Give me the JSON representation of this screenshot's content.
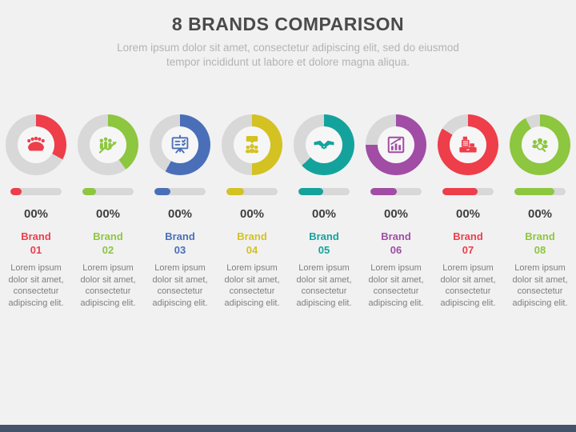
{
  "slide": {
    "title": "8 BRANDS COMPARISON",
    "subtitle": "Lorem ipsum dolor sit amet, consectetur adipiscing elit, sed do eiusmod tempor incididunt ut labore et dolore magna aliqua.",
    "background_color": "#f1f1f2",
    "footer_bar_color": "#44536a",
    "track_color": "#d8d8d9"
  },
  "brands": [
    {
      "label_line1": "Brand",
      "label_line2": "01",
      "percent_label": "00%",
      "color": "#ed3e4a",
      "donut_fill_percent": 33,
      "bar_fill_percent": 22,
      "icon": "conference-meeting-icon",
      "description": "Lorem ipsum dolor sit amet, consectetur adipiscing elit."
    },
    {
      "label_line1": "Brand",
      "label_line2": "02",
      "percent_label": "00%",
      "color": "#8dc63f",
      "donut_fill_percent": 40,
      "bar_fill_percent": 26,
      "icon": "team-growth-icon",
      "description": "Lorem ipsum dolor sit amet, consectetur adipiscing elit."
    },
    {
      "label_line1": "Brand",
      "label_line2": "03",
      "percent_label": "00%",
      "color": "#4a6fb8",
      "donut_fill_percent": 58,
      "bar_fill_percent": 32,
      "icon": "presentation-board-icon",
      "description": "Lorem ipsum dolor sit amet, consectetur adipiscing elit."
    },
    {
      "label_line1": "Brand",
      "label_line2": "04",
      "percent_label": "00%",
      "color": "#d3c222",
      "donut_fill_percent": 50,
      "bar_fill_percent": 34,
      "icon": "group-discussion-icon",
      "description": "Lorem ipsum dolor sit amet, consectetur adipiscing elit."
    },
    {
      "label_line1": "Brand",
      "label_line2": "05",
      "percent_label": "00%",
      "color": "#14a39c",
      "donut_fill_percent": 63,
      "bar_fill_percent": 48,
      "icon": "handshake-icon",
      "description": "Lorem ipsum dolor sit amet, consectetur adipiscing elit."
    },
    {
      "label_line1": "Brand",
      "label_line2": "06",
      "percent_label": "00%",
      "color": "#a14da5",
      "donut_fill_percent": 75,
      "bar_fill_percent": 52,
      "icon": "bar-chart-growth-icon",
      "description": "Lorem ipsum dolor sit amet, consectetur adipiscing elit."
    },
    {
      "label_line1": "Brand",
      "label_line2": "07",
      "percent_label": "00%",
      "color": "#ed3e4a",
      "donut_fill_percent": 84,
      "bar_fill_percent": 68,
      "icon": "cash-register-icon",
      "description": "Lorem ipsum dolor sit amet, consectetur adipiscing elit."
    },
    {
      "label_line1": "Brand",
      "label_line2": "08",
      "percent_label": "00%",
      "color": "#8dc63f",
      "donut_fill_percent": 92,
      "bar_fill_percent": 78,
      "icon": "audience-search-icon",
      "description": "Lorem ipsum dolor sit amet, consectetur adipiscing elit."
    }
  ]
}
